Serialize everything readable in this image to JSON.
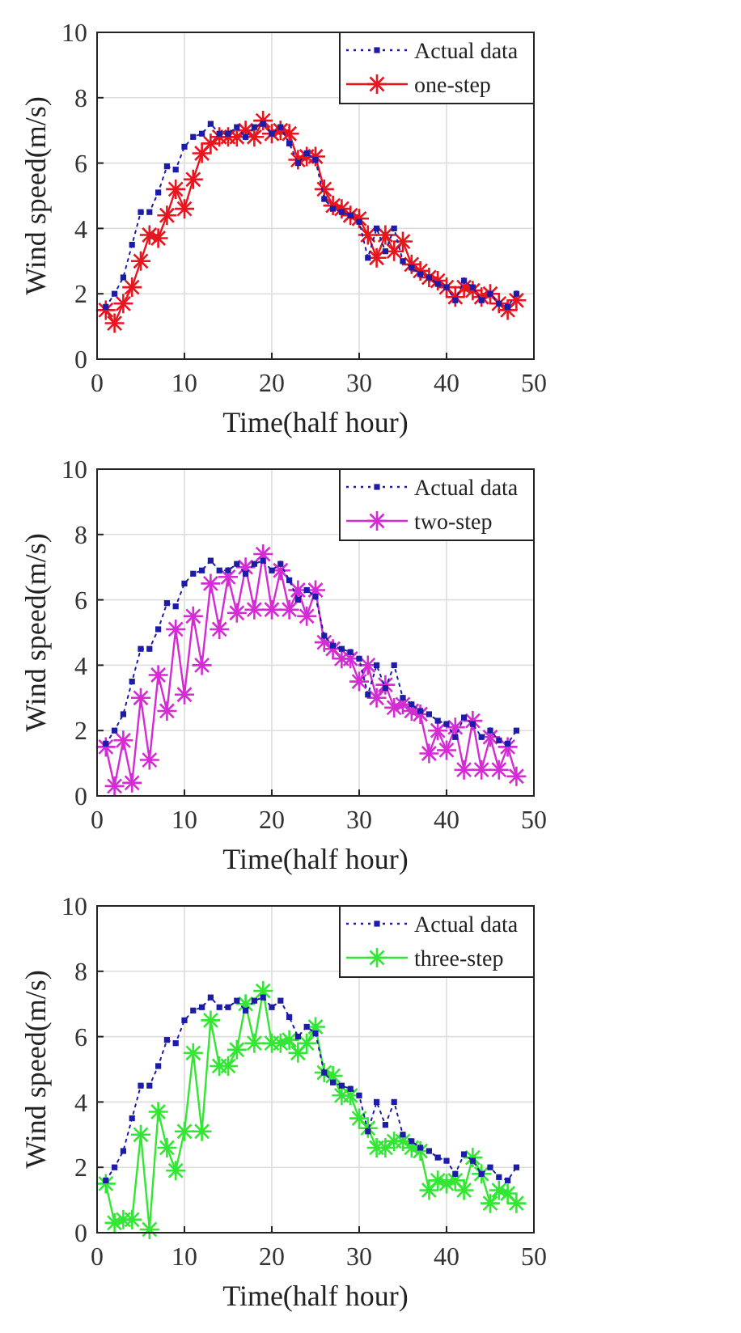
{
  "chart_data": [
    {
      "type": "line",
      "xlabel": "Time(half hour)",
      "ylabel": "Wind speed(m/s)",
      "xlim": [
        0,
        50
      ],
      "xticks": [
        0,
        10,
        20,
        30,
        40,
        50
      ],
      "ylim": [
        0,
        10
      ],
      "yticks": [
        0,
        2,
        4,
        6,
        8,
        10
      ],
      "grid": true,
      "legend": "top right",
      "x": [
        1,
        2,
        3,
        4,
        5,
        6,
        7,
        8,
        9,
        10,
        11,
        12,
        13,
        14,
        15,
        16,
        17,
        18,
        19,
        20,
        21,
        22,
        23,
        24,
        25,
        26,
        27,
        28,
        29,
        30,
        31,
        32,
        33,
        34,
        35,
        36,
        37,
        38,
        39,
        40,
        41,
        42,
        43,
        44,
        45,
        46,
        47,
        48
      ],
      "series": [
        {
          "name": "Actual data",
          "color": "#1c1ca8",
          "marker": "square",
          "line_style": "dotted",
          "values": [
            1.6,
            2.0,
            2.5,
            3.5,
            4.5,
            4.5,
            5.1,
            5.9,
            5.8,
            6.5,
            6.8,
            6.9,
            7.2,
            6.9,
            6.9,
            7.1,
            6.8,
            7.1,
            7.2,
            6.9,
            7.1,
            6.6,
            6.0,
            6.3,
            6.1,
            4.9,
            4.6,
            4.5,
            4.4,
            4.2,
            3.1,
            4.0,
            3.3,
            4.0,
            3.0,
            2.8,
            2.6,
            2.5,
            2.3,
            2.2,
            1.8,
            2.4,
            2.2,
            1.8,
            2.0,
            1.7,
            1.6,
            2.0
          ]
        },
        {
          "name": "one-step",
          "color": "#e8141e",
          "marker": "cross",
          "line_style": "solid",
          "values": [
            1.5,
            1.1,
            1.7,
            2.2,
            3.0,
            3.8,
            3.7,
            4.4,
            5.2,
            4.6,
            5.5,
            6.3,
            6.6,
            6.8,
            6.8,
            6.8,
            7.0,
            6.8,
            7.3,
            6.9,
            7.0,
            6.9,
            6.1,
            6.2,
            6.2,
            5.2,
            4.7,
            4.6,
            4.4,
            4.3,
            3.8,
            3.1,
            3.8,
            3.3,
            3.6,
            2.9,
            2.7,
            2.5,
            2.4,
            2.2,
            1.9,
            2.2,
            2.1,
            1.9,
            2.0,
            1.7,
            1.5,
            1.8
          ]
        }
      ]
    },
    {
      "type": "line",
      "xlabel": "Time(half hour)",
      "ylabel": "Wind speed(m/s)",
      "xlim": [
        0,
        50
      ],
      "xticks": [
        0,
        10,
        20,
        30,
        40,
        50
      ],
      "ylim": [
        0,
        10
      ],
      "yticks": [
        0,
        2,
        4,
        6,
        8,
        10
      ],
      "grid": true,
      "legend": "top right",
      "x": [
        1,
        2,
        3,
        4,
        5,
        6,
        7,
        8,
        9,
        10,
        11,
        12,
        13,
        14,
        15,
        16,
        17,
        18,
        19,
        20,
        21,
        22,
        23,
        24,
        25,
        26,
        27,
        28,
        29,
        30,
        31,
        32,
        33,
        34,
        35,
        36,
        37,
        38,
        39,
        40,
        41,
        42,
        43,
        44,
        45,
        46,
        47,
        48
      ],
      "series": [
        {
          "name": "Actual data",
          "color": "#1c1ca8",
          "marker": "square",
          "line_style": "dotted",
          "values": [
            1.6,
            2.0,
            2.5,
            3.5,
            4.5,
            4.5,
            5.1,
            5.9,
            5.8,
            6.5,
            6.8,
            6.9,
            7.2,
            6.9,
            6.9,
            7.1,
            6.8,
            7.1,
            7.2,
            6.9,
            7.1,
            6.6,
            6.0,
            6.3,
            6.1,
            4.9,
            4.6,
            4.5,
            4.4,
            4.2,
            3.1,
            4.0,
            3.3,
            4.0,
            3.0,
            2.8,
            2.6,
            2.5,
            2.3,
            2.2,
            1.8,
            2.4,
            2.2,
            1.8,
            2.0,
            1.7,
            1.6,
            2.0
          ]
        },
        {
          "name": "two-step",
          "color": "#d42bd4",
          "marker": "cross",
          "line_style": "solid",
          "values": [
            1.5,
            0.3,
            1.7,
            0.4,
            3.0,
            1.1,
            3.7,
            2.6,
            5.1,
            3.1,
            5.5,
            4.0,
            6.5,
            5.1,
            6.7,
            5.6,
            7.0,
            5.7,
            7.4,
            5.7,
            6.9,
            5.7,
            6.3,
            5.5,
            6.3,
            4.7,
            4.5,
            4.2,
            4.2,
            3.5,
            4.0,
            3.0,
            3.4,
            2.7,
            2.8,
            2.6,
            2.5,
            1.3,
            2.0,
            1.4,
            2.1,
            0.8,
            2.3,
            0.8,
            1.8,
            0.8,
            1.5,
            0.6
          ]
        }
      ]
    },
    {
      "type": "line",
      "xlabel": "Time(half hour)",
      "ylabel": "Wind speed(m/s)",
      "xlim": [
        0,
        50
      ],
      "xticks": [
        0,
        10,
        20,
        30,
        40,
        50
      ],
      "ylim": [
        0,
        10
      ],
      "yticks": [
        0,
        2,
        4,
        6,
        8,
        10
      ],
      "grid": true,
      "legend": "top right",
      "x": [
        1,
        2,
        3,
        4,
        5,
        6,
        7,
        8,
        9,
        10,
        11,
        12,
        13,
        14,
        15,
        16,
        17,
        18,
        19,
        20,
        21,
        22,
        23,
        24,
        25,
        26,
        27,
        28,
        29,
        30,
        31,
        32,
        33,
        34,
        35,
        36,
        37,
        38,
        39,
        40,
        41,
        42,
        43,
        44,
        45,
        46,
        47,
        48
      ],
      "series": [
        {
          "name": "Actual data",
          "color": "#1c1ca8",
          "marker": "square",
          "line_style": "dotted",
          "values": [
            1.6,
            2.0,
            2.5,
            3.5,
            4.5,
            4.5,
            5.1,
            5.9,
            5.8,
            6.5,
            6.8,
            6.9,
            7.2,
            6.9,
            6.9,
            7.1,
            6.8,
            7.1,
            7.2,
            6.9,
            7.1,
            6.6,
            6.0,
            6.3,
            6.1,
            4.9,
            4.6,
            4.5,
            4.4,
            4.2,
            3.1,
            4.0,
            3.3,
            4.0,
            3.0,
            2.8,
            2.6,
            2.5,
            2.3,
            2.2,
            1.8,
            2.4,
            2.2,
            1.8,
            2.0,
            1.7,
            1.6,
            2.0
          ]
        },
        {
          "name": "three-step",
          "color": "#33e633",
          "marker": "cross",
          "line_style": "solid",
          "values": [
            1.5,
            0.3,
            0.4,
            0.4,
            3.0,
            0.1,
            3.7,
            2.6,
            1.9,
            3.1,
            5.5,
            3.1,
            6.5,
            5.1,
            5.1,
            5.6,
            7.0,
            5.8,
            7.4,
            5.8,
            5.8,
            5.9,
            5.5,
            5.8,
            6.3,
            4.9,
            4.8,
            4.2,
            4.2,
            3.5,
            3.2,
            2.6,
            2.6,
            2.8,
            2.8,
            2.6,
            2.5,
            1.3,
            1.6,
            1.5,
            1.6,
            1.3,
            2.3,
            1.8,
            0.9,
            1.3,
            1.2,
            0.9
          ]
        }
      ]
    }
  ]
}
